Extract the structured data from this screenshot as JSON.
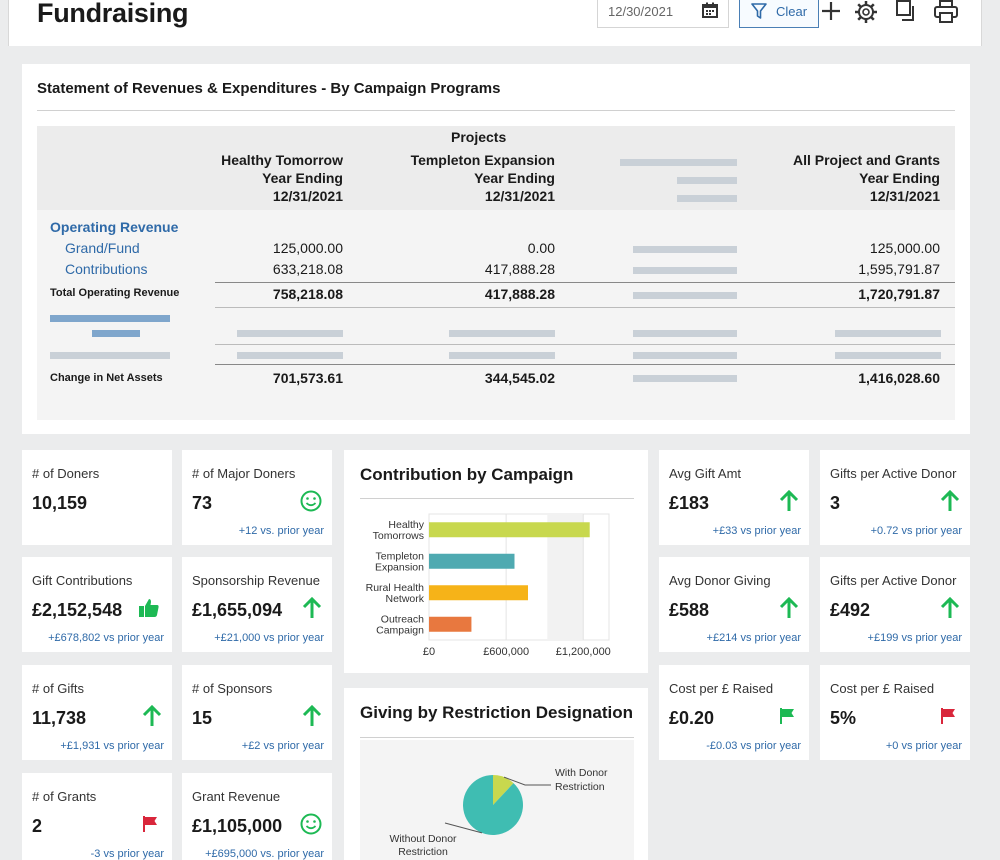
{
  "header": {
    "title": "Fundraising",
    "date": "12/30/2021",
    "clear_label": "Clear"
  },
  "statement": {
    "title": "Statement of Revenues & Expenditures - By Campaign Programs",
    "projects_label": "Projects",
    "col1": {
      "l1": "Healthy Tomorrow",
      "l2": "Year Ending",
      "l3": "12/31/2021"
    },
    "col2": {
      "l1": "Templeton Expansion",
      "l2": "Year Ending",
      "l3": "12/31/2021"
    },
    "col4": {
      "l1": "All Project and Grants",
      "l2": "Year Ending",
      "l3": "12/31/2021"
    },
    "operating_revenue": "Operating Revenue",
    "rows": [
      {
        "label": "Grand/Fund",
        "c1": "125,000.00",
        "c2": "0.00",
        "c4": "125,000.00"
      },
      {
        "label": "Contributions",
        "c1": "633,218.08",
        "c2": "417,888.28",
        "c4": "1,595,791.87"
      },
      {
        "label": "Total Operating Revenue",
        "c1": "758,218.08",
        "c2": "417,888.28",
        "c4": "1,720,791.87"
      },
      {
        "label": "Change in Net Assets",
        "c1": "701,573.61",
        "c2": "344,545.02",
        "c4": "1,416,028.60"
      }
    ]
  },
  "kpis": {
    "doners": {
      "label": "# of Doners",
      "value": "10,159"
    },
    "major_doners": {
      "label": "# of Major Doners",
      "value": "73",
      "sub": "+12 vs. prior year"
    },
    "gift_contrib": {
      "label": "Gift Contributions",
      "value": "£2,152,548",
      "sub": "+£678,802 vs prior year"
    },
    "sponsorship": {
      "label": "Sponsorship Revenue",
      "value": "£1,655,094",
      "sub": "+£21,000 vs prior year"
    },
    "gifts": {
      "label": "# of Gifts",
      "value": "11,738",
      "sub": "+£1,931 vs prior year"
    },
    "sponsors": {
      "label": "# of Sponsors",
      "value": "15",
      "sub": "+£2 vs prior year"
    },
    "grants": {
      "label": "# of Grants",
      "value": "2",
      "sub": "-3 vs prior year"
    },
    "grant_revenue": {
      "label": "Grant Revenue",
      "value": "£1,105,000",
      "sub": "+£695,000 vs. prior year"
    },
    "avg_gift": {
      "label": "Avg Gift Amt",
      "value": "£183",
      "sub": "+£33 vs prior year"
    },
    "gifts_per_donor_1": {
      "label": "Gifts per Active Donor",
      "value": "3",
      "sub": "+0.72 vs prior year"
    },
    "avg_donor": {
      "label": "Avg Donor Giving",
      "value": "£588",
      "sub": "+£214 vs prior year"
    },
    "gifts_per_donor_2": {
      "label": "Gifts per Active Donor",
      "value": "£492",
      "sub": "+£199 vs prior year"
    },
    "cost_raised_1": {
      "label": "Cost per £ Raised",
      "value": "£0.20",
      "sub": "-£0.03 vs prior year"
    },
    "cost_raised_2": {
      "label": "Cost per £ Raised",
      "value": "5%",
      "sub": "+0 vs prior year"
    }
  },
  "colors": {
    "up": "#1db954",
    "flag_green": "#1db954",
    "flag_red": "#d9263b",
    "link": "#2f6aa8"
  },
  "chart_data": [
    {
      "type": "bar",
      "orientation": "horizontal",
      "title": "Contribution by Campaign",
      "categories": [
        "Healthy Tomorrows",
        "Templeton Expansion",
        "Rural Health Network",
        "Outreach Campaign"
      ],
      "category_lines": [
        [
          "Healthy",
          "Tomorrows"
        ],
        [
          "Templeton",
          "Expansion"
        ],
        [
          "Rural Health",
          "Network"
        ],
        [
          "Outreach",
          "Campaign"
        ]
      ],
      "values": [
        1250000,
        665000,
        770000,
        330000
      ],
      "colors": [
        "#c8d84e",
        "#4faab1",
        "#f6b318",
        "#e8783f"
      ],
      "xticks": [
        "£0",
        "£600,000",
        "£1,200,000"
      ],
      "xlim": [
        0,
        1400000
      ]
    },
    {
      "type": "pie",
      "title": "Giving by Restriction Designation",
      "labels": [
        "With Donor Restriction",
        "Without Donor Restriction"
      ],
      "label_lines": [
        [
          "With Donor",
          "Restriction"
        ],
        [
          "Without Donor",
          "Restriction"
        ]
      ],
      "values": [
        12,
        88
      ],
      "colors": [
        "#c8d84e",
        "#3fbdb2"
      ]
    }
  ]
}
